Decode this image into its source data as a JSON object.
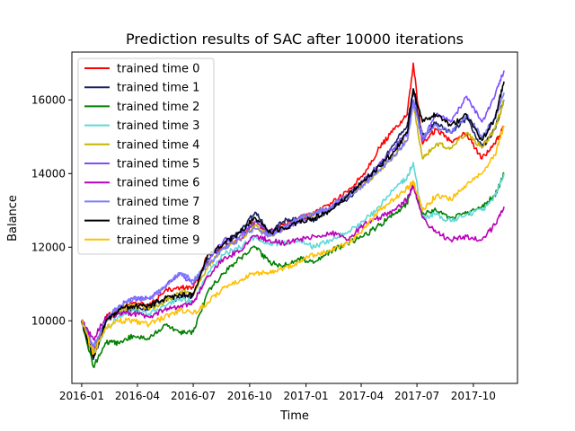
{
  "chart_data": {
    "type": "line",
    "title": "Prediction results of SAC after 10000 iterations",
    "xlabel": "Time",
    "ylabel": "Balance",
    "x_range": [
      "2015-12-16",
      "2017-12-12"
    ],
    "ylim": [
      8300,
      17300
    ],
    "x_ticks": [
      "2016-01",
      "2016-04",
      "2016-07",
      "2016-10",
      "2017-01",
      "2017-04",
      "2017-07",
      "2017-10"
    ],
    "y_ticks": [
      10000,
      12000,
      14000,
      16000
    ],
    "legend_position": "upper-left",
    "grid": false,
    "x_dates": [
      "2016-01-01",
      "2016-01-20",
      "2016-02-10",
      "2016-03-01",
      "2016-03-25",
      "2016-04-20",
      "2016-05-15",
      "2016-06-10",
      "2016-07-01",
      "2016-07-25",
      "2016-08-20",
      "2016-09-15",
      "2016-10-10",
      "2016-11-01",
      "2016-11-25",
      "2016-12-20",
      "2017-01-15",
      "2017-02-10",
      "2017-03-10",
      "2017-04-05",
      "2017-05-01",
      "2017-05-25",
      "2017-06-15",
      "2017-06-25",
      "2017-07-10",
      "2017-08-01",
      "2017-08-25",
      "2017-09-20",
      "2017-10-15",
      "2017-11-05",
      "2017-11-20"
    ],
    "series": [
      {
        "name": "trained time 0",
        "color": "#ff0000",
        "values": [
          10000,
          9100,
          10100,
          10300,
          10500,
          10400,
          10800,
          10900,
          10900,
          11800,
          12000,
          12200,
          12700,
          12400,
          12600,
          12800,
          12900,
          13200,
          13500,
          14000,
          14700,
          15200,
          15600,
          17000,
          14800,
          15200,
          14900,
          15100,
          14400,
          14800,
          15300
        ]
      },
      {
        "name": "trained time 1",
        "color": "#1a2060",
        "values": [
          10000,
          8950,
          10000,
          10250,
          10300,
          10350,
          10600,
          10600,
          10700,
          11700,
          12100,
          12400,
          12950,
          12400,
          12700,
          12800,
          12750,
          13000,
          13300,
          13800,
          14200,
          14800,
          15300,
          16300,
          15000,
          15400,
          15100,
          15500,
          14700,
          15200,
          16000
        ]
      },
      {
        "name": "trained time 2",
        "color": "#008000",
        "values": [
          10000,
          8750,
          9400,
          9400,
          9600,
          9500,
          9900,
          9700,
          9700,
          10800,
          11300,
          11700,
          12000,
          11600,
          11500,
          11700,
          11600,
          11900,
          12100,
          12300,
          12600,
          12900,
          13200,
          13700,
          12900,
          13000,
          12800,
          12900,
          13100,
          13400,
          14000
        ]
      },
      {
        "name": "trained time 3",
        "color": "#5fd8d8",
        "values": [
          10000,
          9100,
          9800,
          10100,
          10300,
          10200,
          10400,
          10600,
          10500,
          11300,
          11800,
          12000,
          12300,
          12100,
          12100,
          12200,
          12000,
          12200,
          12400,
          12700,
          13100,
          13600,
          13900,
          14300,
          12800,
          12900,
          12700,
          12900,
          13000,
          13400,
          14000
        ]
      },
      {
        "name": "trained time 4",
        "color": "#c8b400",
        "values": [
          10000,
          9200,
          10000,
          10300,
          10400,
          10300,
          10500,
          10800,
          10700,
          11500,
          12000,
          12200,
          12600,
          12300,
          12500,
          12700,
          12900,
          13100,
          13400,
          13700,
          14100,
          14500,
          14900,
          15900,
          14400,
          14800,
          14700,
          15100,
          14700,
          15200,
          16000
        ]
      },
      {
        "name": "trained time 5",
        "color": "#7f4fff",
        "values": [
          10000,
          9300,
          10000,
          10400,
          10600,
          10600,
          10900,
          11300,
          11000,
          11600,
          12200,
          12300,
          12700,
          12400,
          12500,
          12700,
          12900,
          13100,
          13400,
          13800,
          14300,
          14700,
          15100,
          16000,
          14900,
          15600,
          15400,
          16100,
          15400,
          16100,
          16800
        ]
      },
      {
        "name": "trained time 6",
        "color": "#bb00bb",
        "values": [
          10000,
          9500,
          10100,
          10200,
          10200,
          10100,
          10300,
          10400,
          10500,
          11200,
          11700,
          11900,
          12300,
          12200,
          12100,
          12200,
          12300,
          12400,
          12200,
          12600,
          12800,
          13000,
          13300,
          13700,
          12800,
          12400,
          12200,
          12300,
          12200,
          12600,
          13100
        ]
      },
      {
        "name": "trained time 7",
        "color": "#7b7bff",
        "values": [
          10000,
          9300,
          10000,
          10400,
          10600,
          10600,
          10900,
          11300,
          11100,
          11500,
          12000,
          12200,
          12500,
          12300,
          12500,
          12800,
          12900,
          13100,
          13400,
          13700,
          14100,
          14500,
          14900,
          15900,
          15000,
          15300,
          15100,
          15600,
          15000,
          15500,
          16200
        ]
      },
      {
        "name": "trained time 8",
        "color": "#000000",
        "values": [
          10000,
          9000,
          10000,
          10300,
          10400,
          10400,
          10600,
          10700,
          10700,
          11800,
          12100,
          12400,
          12800,
          12400,
          12500,
          12700,
          12800,
          13000,
          13400,
          13800,
          14200,
          14600,
          15100,
          16300,
          15400,
          15600,
          15300,
          15600,
          14900,
          15500,
          16500
        ]
      },
      {
        "name": "trained time 9",
        "color": "#ffc000",
        "values": [
          10000,
          9100,
          9800,
          10000,
          10000,
          9900,
          10100,
          10300,
          10200,
          10500,
          10900,
          11100,
          11300,
          11300,
          11400,
          11600,
          11800,
          11900,
          12100,
          12500,
          13000,
          13300,
          13600,
          13800,
          13000,
          13400,
          13300,
          13700,
          14000,
          14500,
          15300
        ]
      }
    ]
  }
}
